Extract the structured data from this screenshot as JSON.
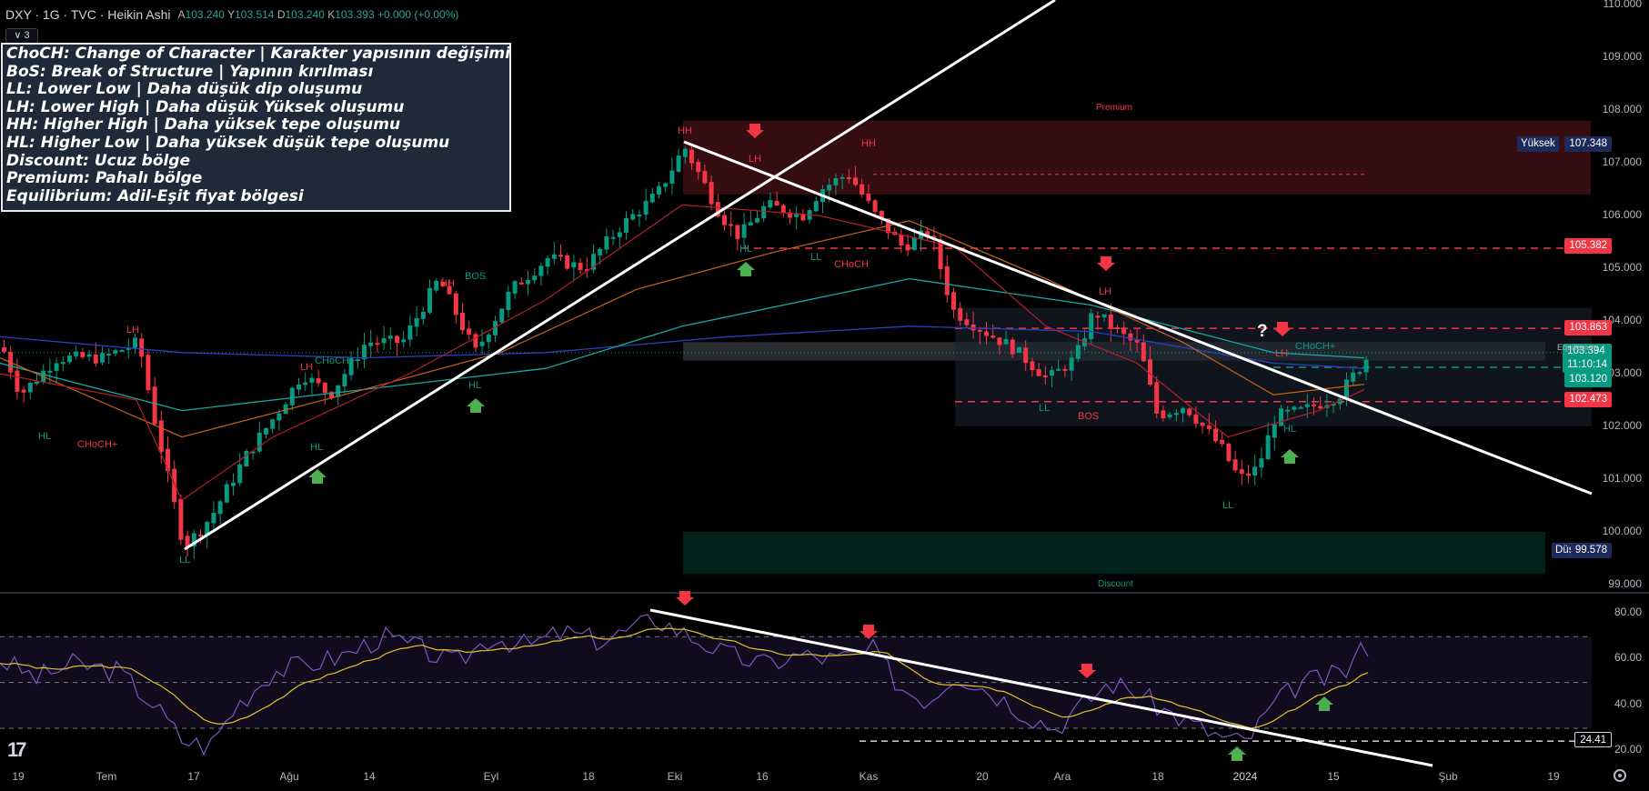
{
  "header": {
    "title": "DXY · 1G · TVC · Heikin Ashi",
    "ohlc": [
      {
        "k": "A",
        "v": "103.240"
      },
      {
        "k": "Y",
        "v": "103.514"
      },
      {
        "k": "D",
        "v": "103.240"
      },
      {
        "k": "K",
        "v": "103.393"
      }
    ],
    "change": "+0.000 (+0.00%)",
    "collapse": "3"
  },
  "legend": [
    "ChoCH: Change of Character | Karakter yapısının değişimi",
    "BoS: Break of Structure | Yapının kırılması",
    "LL: Lower Low | Daha düşük dip oluşumu",
    "LH: Lower High | Daha düşük Yüksek oluşumu",
    "HH: Higher High | Daha yüksek tepe oluşumu",
    "HL: Higher Low | Daha yüksek düşük tepe oluşumu",
    "Discount: Ucuz bölge",
    "Premium: Pahalı bölge",
    "Equilibrium: Adil-Eşit fiyat bölgesi"
  ],
  "price_axis": {
    "ticks": [
      "110.000",
      "109.000",
      "108.000",
      "107.000",
      "106.000",
      "105.000",
      "104.000",
      "103.000",
      "102.000",
      "101.000",
      "100.000",
      "99.000"
    ],
    "labels": {
      "yuksek": {
        "name": "Yüksek",
        "value": "107.348",
        "color": "#1e2a5a"
      },
      "r1": {
        "value": "105.382",
        "color": "#f23645"
      },
      "r2": {
        "value": "103.863",
        "color": "#f23645"
      },
      "current": {
        "value": "103.394",
        "time": "11:10:14",
        "color": "#089981"
      },
      "c2": {
        "value": "103.120",
        "color": "#089981"
      },
      "r3": {
        "value": "102.473",
        "color": "#f23645"
      },
      "dusuk": {
        "name": "Düşük",
        "value": "99.578",
        "color": "#1e2a5a"
      }
    }
  },
  "rsi_axis": {
    "ticks": [
      "80.00",
      "60.00",
      "40.00",
      "20.00"
    ],
    "marker": "24.41"
  },
  "time_axis": [
    "19",
    "Tem",
    "17",
    "Ağu",
    "14",
    "Eyl",
    "18",
    "Eki",
    "16",
    "Kas",
    "20",
    "Ara",
    "18",
    "2024",
    "15",
    "Şub",
    "19"
  ],
  "zones": {
    "premium": "Premium",
    "discount": "Discount",
    "equilibrium": "Equilibrium"
  },
  "marks": [
    {
      "t": "LH",
      "c": "#f23645"
    },
    {
      "t": "HL",
      "c": "#089981"
    },
    {
      "t": "CHoCH+",
      "c": "#f23645"
    },
    {
      "t": "LL",
      "c": "#089981"
    },
    {
      "t": "LH",
      "c": "#f23645"
    },
    {
      "t": "CHoCH+",
      "c": "#089981"
    },
    {
      "t": "HL",
      "c": "#089981"
    },
    {
      "t": "HH",
      "c": "#f23645"
    },
    {
      "t": "BOS",
      "c": "#089981"
    },
    {
      "t": "HL",
      "c": "#089981"
    },
    {
      "t": "HH",
      "c": "#f23645"
    },
    {
      "t": "LH",
      "c": "#f23645"
    },
    {
      "t": "HL",
      "c": "#089981"
    },
    {
      "t": "HH",
      "c": "#f23645"
    },
    {
      "t": "LL",
      "c": "#089981"
    },
    {
      "t": "CHoCH",
      "c": "#f23645"
    },
    {
      "t": "LH",
      "c": "#f23645"
    },
    {
      "t": "LL",
      "c": "#089981"
    },
    {
      "t": "BOS",
      "c": "#f23645"
    },
    {
      "t": "LL",
      "c": "#089981"
    },
    {
      "t": "LH",
      "c": "#f23645"
    },
    {
      "t": "CHoCH+",
      "c": "#089981"
    },
    {
      "t": "HL",
      "c": "#089981"
    },
    {
      "t": "?",
      "c": "#ffffff"
    }
  ],
  "colors": {
    "up": "#089981",
    "down": "#f23645",
    "bg": "#000000"
  }
}
